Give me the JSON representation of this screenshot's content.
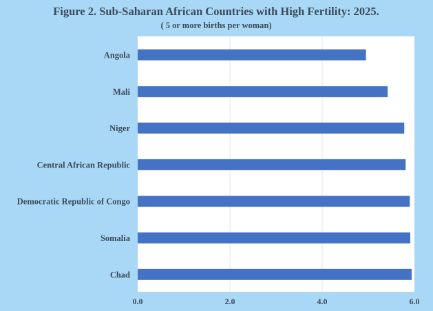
{
  "chart_data": {
    "type": "bar",
    "orientation": "horizontal",
    "title": "Figure 2. Sub-Saharan African Countries with High Fertility: 2025.",
    "subtitle": "( 5 or more births per woman)",
    "categories": [
      "Angola",
      "Mali",
      "Niger",
      "Central African Republic",
      "Democratic Republic of Congo",
      "Somalia",
      "Chad"
    ],
    "values": [
      4.95,
      5.42,
      5.78,
      5.81,
      5.9,
      5.91,
      5.94
    ],
    "xlim": [
      0,
      6
    ],
    "xticks": [
      "0.0",
      "2.0",
      "4.0",
      "6.0"
    ],
    "xlabel": "",
    "ylabel": "",
    "grid": "vertical",
    "legend": "none",
    "colors": {
      "bar": "#4472c4",
      "background": "#a9d8f6",
      "plot": "#ffffff",
      "text": "#3b4a5a",
      "grid": "#e3e3e3"
    }
  }
}
